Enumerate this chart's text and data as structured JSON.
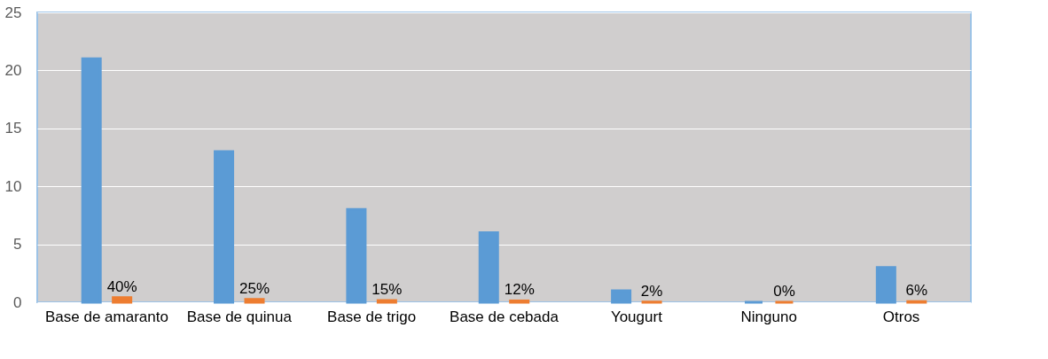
{
  "chart_data": {
    "type": "bar",
    "categories": [
      "Base de amaranto",
      "Base de quinua",
      "Base de trigo",
      "Base de cebada",
      "Yougurt",
      "Ninguno",
      "Otros"
    ],
    "series": [
      {
        "color": "#5b9bd5",
        "values": [
          21,
          13,
          8,
          6,
          1,
          0,
          3
        ]
      },
      {
        "color": "#ed7d31",
        "values": [
          0.4,
          0.25,
          0.15,
          0.12,
          0.02,
          0,
          0.06
        ],
        "value_labels": [
          "40%",
          "25%",
          "15%",
          "12%",
          "2%",
          "0%",
          "6%"
        ]
      }
    ],
    "ylim": [
      0,
      25
    ],
    "yticks": [
      0,
      5,
      10,
      15,
      20,
      25
    ],
    "grid": "y",
    "legend": false
  }
}
